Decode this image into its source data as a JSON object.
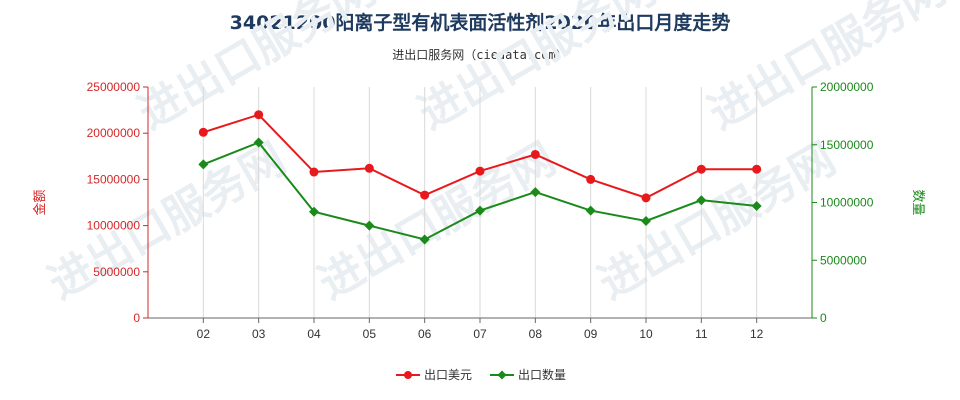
{
  "chart_data": {
    "type": "line",
    "title": "34021200阳离子型有机表面活性剂2020年出口月度走势",
    "subtitle": "进出口服务网（ciedata.com）",
    "categories": [
      "02",
      "03",
      "04",
      "05",
      "06",
      "07",
      "08",
      "09",
      "10",
      "11",
      "12"
    ],
    "ylabel_left": "金额",
    "ylabel_right": "数量",
    "ylim_left": [
      0,
      25000000
    ],
    "ylim_right": [
      0,
      20000000
    ],
    "yticks_left": [
      "0",
      "5000000",
      "10000000",
      "15000000",
      "20000000",
      "25000000"
    ],
    "yticks_right": [
      "0",
      "5000000",
      "10000000",
      "15000000",
      "20000000"
    ],
    "series": [
      {
        "name": "出口美元",
        "axis": "left",
        "color": "#e8191c",
        "values": [
          20100000,
          22000000,
          15800000,
          16200000,
          13300000,
          15900000,
          17700000,
          15000000,
          13000000,
          16100000,
          16100000
        ]
      },
      {
        "name": "出口数量",
        "axis": "right",
        "color": "#1a8a1a",
        "values": [
          13300000,
          15200000,
          9200000,
          8000000,
          6800000,
          9300000,
          10900000,
          9300000,
          8400000,
          10200000,
          9700000
        ]
      }
    ],
    "legend_position": "bottom-center",
    "grid": "vertical",
    "watermark": "进出口服务网"
  }
}
